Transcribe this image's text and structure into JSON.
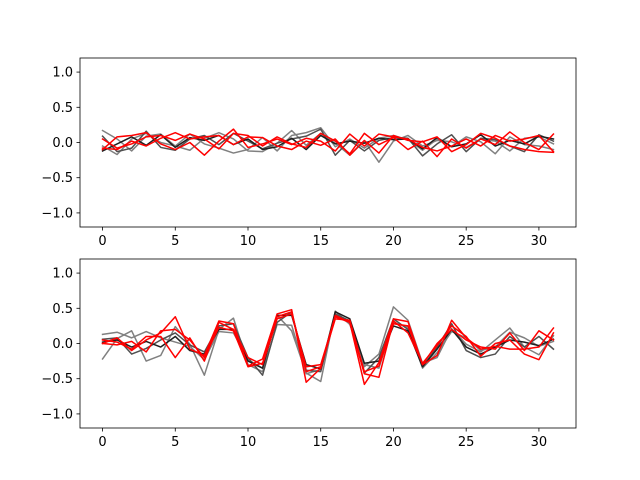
{
  "chart_data": [
    {
      "type": "line",
      "title": "",
      "xlabel": "",
      "ylabel": "",
      "xlim": [
        -1.55,
        32.55
      ],
      "ylim": [
        -1.2,
        1.2
      ],
      "xticks": [
        0,
        5,
        10,
        15,
        20,
        25,
        30
      ],
      "yticks": [
        -1.0,
        -0.5,
        0.0,
        0.5,
        1.0
      ],
      "ytick_labels": [
        "−1.0",
        "−0.5",
        "0.0",
        "0.5",
        "1.0"
      ],
      "grid": false,
      "series": [
        {
          "color": "#808080",
          "values": [
            0.17,
            0.05,
            -0.12,
            0.09,
            0.12,
            -0.05,
            -0.11,
            0.06,
            0.14,
            0.05,
            -0.12,
            -0.13,
            -0.01,
            0.17,
            -0.04,
            0.13,
            -0.01,
            -0.18,
            0.02,
            -0.28,
            0.02,
            0.1,
            -0.05,
            0.03,
            0.01,
            -0.07,
            0.05,
            0.02,
            -0.12,
            0.06,
            0.08,
            -0.02
          ]
        },
        {
          "color": "#808080",
          "values": [
            -0.05,
            -0.17,
            0.05,
            0.13,
            0.0,
            -0.05,
            0.12,
            -0.02,
            -0.08,
            -0.15,
            -0.1,
            0.07,
            -0.12,
            0.1,
            0.14,
            0.21,
            -0.06,
            0.05,
            -0.08,
            0.06,
            0.1,
            0.04,
            -0.11,
            0.05,
            -0.06,
            0.08,
            0.01,
            -0.16,
            0.08,
            -0.03,
            -0.05,
            -0.1
          ]
        },
        {
          "color": "#505050",
          "values": [
            0.09,
            -0.13,
            -0.08,
            0.16,
            -0.07,
            -0.11,
            0.05,
            0.1,
            -0.03,
            0.13,
            0.02,
            -0.09,
            -0.01,
            0.05,
            0.09,
            0.19,
            -0.18,
            0.03,
            -0.12,
            0.03,
            0.07,
            0.06,
            -0.19,
            -0.02,
            0.11,
            -0.13,
            0.06,
            0.04,
            -0.05,
            -0.13,
            0.11,
            0.02
          ]
        },
        {
          "color": "#202020",
          "values": [
            -0.12,
            -0.02,
            0.08,
            -0.04,
            0.11,
            -0.07,
            0.07,
            0.03,
            0.1,
            -0.03,
            0.05,
            -0.1,
            -0.06,
            0.06,
            -0.1,
            0.1,
            -0.02,
            0.02,
            -0.01,
            0.06,
            0.04,
            0.05,
            -0.09,
            0.07,
            -0.06,
            -0.02,
            0.11,
            -0.05,
            0.03,
            -0.02,
            0.09,
            0.05
          ]
        },
        {
          "color": "#ff0000",
          "values": [
            -0.1,
            0.08,
            0.1,
            0.14,
            -0.02,
            -0.1,
            0.0,
            -0.18,
            0.02,
            0.19,
            -0.07,
            -0.02,
            0.05,
            -0.03,
            0.06,
            0.02,
            -0.12,
            0.12,
            -0.05,
            0.12,
            0.08,
            0.05,
            -0.07,
            -0.12,
            -0.05,
            0.05,
            -0.05,
            0.1,
            0.02,
            0.05,
            0.1,
            -0.13
          ]
        },
        {
          "color": "#ff0000",
          "values": [
            0.05,
            -0.08,
            -0.02,
            0.08,
            0.1,
            0.03,
            0.12,
            0.05,
            -0.09,
            0.13,
            0.1,
            -0.05,
            0.08,
            -0.02,
            -0.07,
            0.13,
            0.02,
            -0.16,
            0.13,
            -0.03,
            0.07,
            -0.1,
            0.02,
            -0.2,
            0.05,
            -0.08,
            0.05,
            -0.03,
            0.15,
            0.0,
            -0.1,
            0.12
          ]
        },
        {
          "color": "#ff0000",
          "values": [
            -0.08,
            -0.1,
            0.02,
            -0.05,
            0.06,
            0.14,
            0.05,
            0.08,
            0.1,
            -0.03,
            0.08,
            0.07,
            -0.05,
            -0.1,
            0.02,
            -0.04,
            0.05,
            -0.18,
            0.03,
            -0.15,
            0.1,
            0.03,
            0.01,
            0.08,
            -0.13,
            -0.03,
            0.13,
            0.06,
            -0.05,
            -0.1,
            -0.13,
            -0.14
          ]
        }
      ]
    },
    {
      "type": "line",
      "title": "",
      "xlabel": "",
      "ylabel": "",
      "xlim": [
        -1.55,
        32.55
      ],
      "ylim": [
        -1.2,
        1.2
      ],
      "xticks": [
        0,
        5,
        10,
        15,
        20,
        25,
        30
      ],
      "yticks": [
        -1.0,
        -0.5,
        0.0,
        0.5,
        1.0
      ],
      "ytick_labels": [
        "−1.0",
        "−0.5",
        "0.0",
        "0.5",
        "1.0"
      ],
      "grid": false,
      "series": [
        {
          "color": "#808080",
          "values": [
            -0.22,
            0.07,
            0.18,
            -0.25,
            -0.17,
            0.24,
            -0.01,
            -0.45,
            0.2,
            0.36,
            -0.3,
            -0.4,
            0.27,
            0.26,
            -0.43,
            -0.37,
            0.42,
            0.28,
            -0.33,
            -0.15,
            0.52,
            0.33,
            -0.28,
            -0.2,
            0.21,
            -0.01,
            -0.12,
            0.05,
            0.22,
            -0.05,
            -0.16,
            0.11
          ]
        },
        {
          "color": "#808080",
          "values": [
            0.13,
            0.16,
            0.08,
            0.17,
            0.08,
            0.02,
            -0.04,
            -0.23,
            0.17,
            0.15,
            -0.23,
            -0.35,
            0.4,
            0.18,
            -0.42,
            -0.54,
            0.46,
            0.27,
            -0.3,
            -0.35,
            0.3,
            0.23,
            -0.35,
            -0.13,
            0.17,
            0.08,
            -0.1,
            -0.05,
            0.16,
            0.08,
            -0.04,
            0.03
          ]
        },
        {
          "color": "#505050",
          "values": [
            0.06,
            0.08,
            -0.15,
            -0.07,
            0.05,
            0.15,
            -0.02,
            -0.12,
            0.25,
            0.28,
            -0.2,
            -0.45,
            0.3,
            0.45,
            -0.38,
            -0.4,
            0.42,
            0.32,
            -0.42,
            -0.2,
            0.35,
            0.2,
            -0.33,
            -0.05,
            0.28,
            -0.1,
            -0.2,
            -0.15,
            0.1,
            -0.05,
            0.1,
            -0.08
          ]
        },
        {
          "color": "#202020",
          "values": [
            0.02,
            0.05,
            -0.05,
            0.03,
            -0.05,
            0.1,
            -0.1,
            -0.15,
            0.2,
            0.2,
            -0.25,
            -0.35,
            0.4,
            0.4,
            -0.3,
            -0.36,
            0.45,
            0.35,
            -0.28,
            -0.25,
            0.25,
            0.18,
            -0.33,
            -0.08,
            0.2,
            -0.05,
            -0.15,
            -0.05,
            0.05,
            0.02,
            -0.03,
            0.06
          ]
        },
        {
          "color": "#ff0000",
          "values": [
            0.0,
            0.08,
            -0.1,
            0.05,
            0.15,
            0.38,
            -0.08,
            -0.17,
            0.32,
            0.28,
            -0.32,
            -0.22,
            0.42,
            0.48,
            -0.55,
            -0.35,
            0.4,
            0.3,
            -0.58,
            -0.27,
            0.35,
            0.31,
            -0.3,
            -0.17,
            0.33,
            0.08,
            -0.08,
            -0.04,
            -0.08,
            -0.08,
            -0.05,
            0.22
          ]
        },
        {
          "color": "#ff0000",
          "values": [
            0.05,
            0.02,
            -0.08,
            0.1,
            0.1,
            -0.2,
            0.08,
            -0.25,
            0.3,
            0.2,
            -0.2,
            -0.3,
            0.35,
            0.42,
            -0.33,
            -0.3,
            0.38,
            0.3,
            -0.43,
            -0.48,
            0.32,
            0.15,
            -0.28,
            -0.03,
            0.25,
            0.1,
            -0.18,
            0.0,
            0.05,
            -0.15,
            -0.23,
            0.15
          ]
        },
        {
          "color": "#ff0000",
          "values": [
            0.0,
            -0.02,
            0.03,
            -0.12,
            0.18,
            0.2,
            0.05,
            -0.2,
            0.23,
            0.18,
            -0.33,
            -0.28,
            0.38,
            0.45,
            -0.4,
            -0.33,
            0.35,
            0.33,
            -0.4,
            -0.32,
            0.28,
            0.25,
            -0.3,
            0.0,
            0.2,
            0.05,
            -0.05,
            -0.08,
            0.15,
            -0.1,
            0.18,
            0.05
          ]
        }
      ]
    }
  ]
}
